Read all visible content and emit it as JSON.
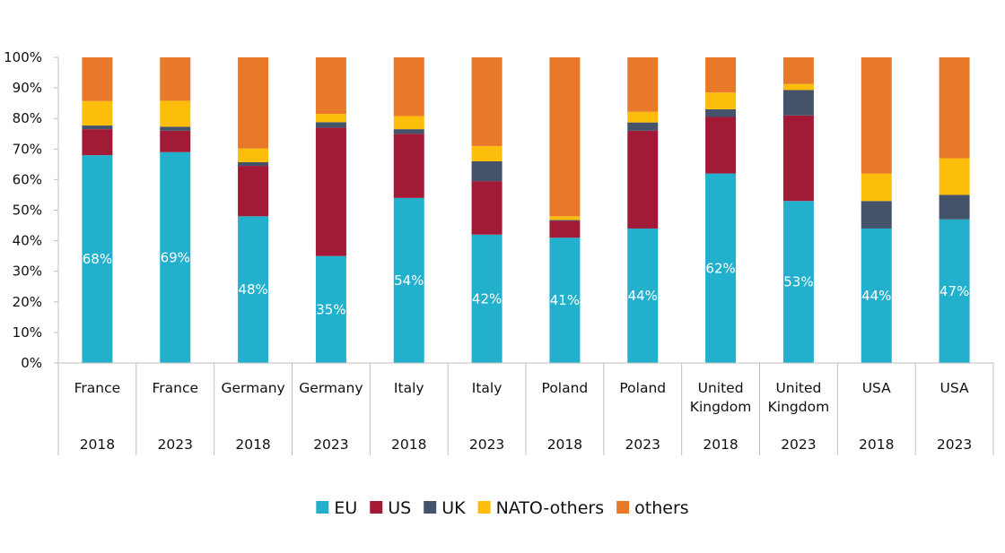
{
  "chart_data": {
    "type": "bar",
    "stacked": true,
    "percent_stacked": true,
    "title": "",
    "xlabel": "",
    "ylabel": "",
    "ylim": [
      0,
      100
    ],
    "y_ticks": [
      "0%",
      "10%",
      "20%",
      "30%",
      "40%",
      "50%",
      "60%",
      "70%",
      "80%",
      "90%",
      "100%"
    ],
    "categories": [
      {
        "country": [
          "France"
        ],
        "year": "2018"
      },
      {
        "country": [
          "France"
        ],
        "year": "2023"
      },
      {
        "country": [
          "Germany"
        ],
        "year": "2018"
      },
      {
        "country": [
          "Germany"
        ],
        "year": "2023"
      },
      {
        "country": [
          "Italy"
        ],
        "year": "2018"
      },
      {
        "country": [
          "Italy"
        ],
        "year": "2023"
      },
      {
        "country": [
          "Poland"
        ],
        "year": "2018"
      },
      {
        "country": [
          "Poland"
        ],
        "year": "2023"
      },
      {
        "country": [
          "United",
          "Kingdom"
        ],
        "year": "2018"
      },
      {
        "country": [
          "United",
          "Kingdom"
        ],
        "year": "2023"
      },
      {
        "country": [
          "USA"
        ],
        "year": "2018"
      },
      {
        "country": [
          "USA"
        ],
        "year": "2023"
      }
    ],
    "series": [
      {
        "name": "EU",
        "color": "#22b0cc",
        "values": [
          68,
          69,
          48,
          35,
          54,
          42,
          41,
          44,
          62,
          53,
          44,
          47
        ]
      },
      {
        "name": "US",
        "color": "#a31a37",
        "values": [
          8.5,
          7,
          16.5,
          42,
          21,
          17.5,
          5.5,
          32,
          18.5,
          28,
          0,
          0
        ]
      },
      {
        "name": "UK",
        "color": "#44536a",
        "values": [
          1.2,
          1.3,
          1.2,
          1.8,
          1.5,
          6.5,
          0.3,
          2.7,
          2.5,
          8.3,
          9,
          8
        ]
      },
      {
        "name": "NATO-others",
        "color": "#fcbe0a",
        "values": [
          8,
          8.5,
          4.5,
          2.7,
          4.3,
          5,
          1.2,
          3.5,
          5.5,
          2,
          9,
          12
        ]
      },
      {
        "name": "others",
        "color": "#e8782a",
        "values": [
          14.3,
          14.2,
          29.8,
          18.5,
          19.2,
          29,
          52,
          17.8,
          11.5,
          8.7,
          38,
          33
        ]
      }
    ],
    "data_labels": [
      "68%",
      "69%",
      "48%",
      "35%",
      "54%",
      "42%",
      "41%",
      "44%",
      "62%",
      "53%",
      "44%",
      "47%"
    ],
    "legend": {
      "position": "bottom",
      "entries": [
        "EU",
        "US",
        "UK",
        "NATO-others",
        "others"
      ]
    },
    "grid": false
  }
}
